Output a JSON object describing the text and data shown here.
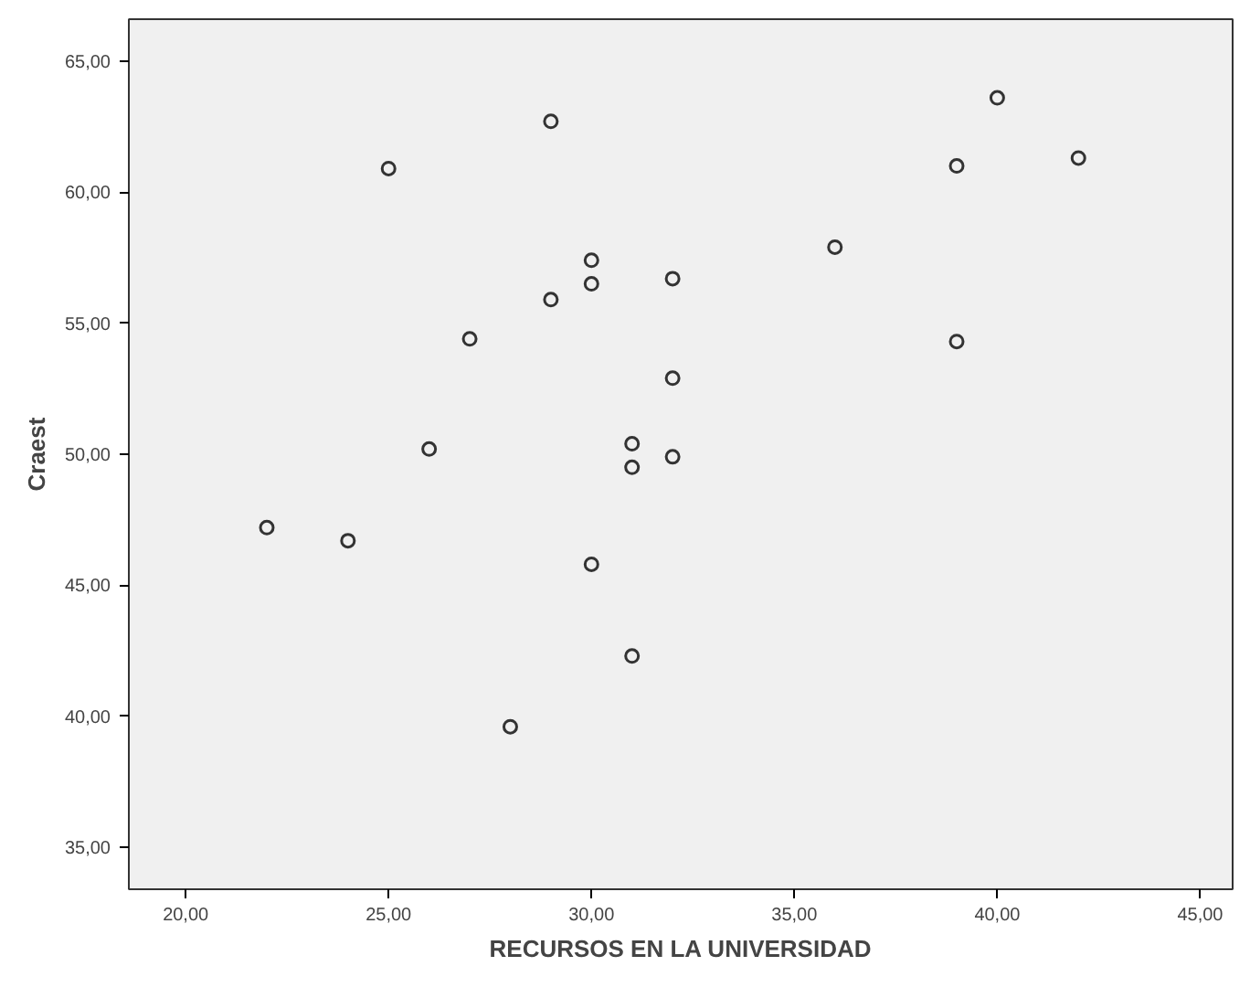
{
  "chart_data": {
    "type": "scatter",
    "xlabel": "RECURSOS EN LA UNIVERSIDAD",
    "ylabel": "Craest",
    "x": [
      22,
      24,
      25,
      26,
      27,
      28,
      29,
      29,
      30,
      30,
      30,
      31,
      31,
      31,
      32,
      32,
      32,
      36,
      39,
      39,
      40,
      42
    ],
    "series": [
      {
        "color": "#333333",
        "values": [
          47.2,
          46.7,
          60.9,
          50.2,
          54.4,
          39.6,
          62.7,
          55.9,
          57.4,
          56.5,
          45.8,
          50.4,
          49.5,
          42.3,
          56.7,
          52.9,
          49.9,
          57.9,
          61.0,
          54.3,
          63.6,
          61.3
        ]
      }
    ],
    "marker": "circle",
    "grid": false,
    "xlim": [
      18.6,
      45.8
    ],
    "ylim": [
      33.4,
      66.6
    ],
    "xticks": [
      {
        "value": 20,
        "label": "20,00"
      },
      {
        "value": 25,
        "label": "25,00"
      },
      {
        "value": 30,
        "label": "30,00"
      },
      {
        "value": 35,
        "label": "35,00"
      },
      {
        "value": 40,
        "label": "40,00"
      },
      {
        "value": 45,
        "label": "45,00"
      }
    ],
    "yticks": [
      {
        "value": 35,
        "label": "35,00"
      },
      {
        "value": 40,
        "label": "40,00"
      },
      {
        "value": 45,
        "label": "45,00"
      },
      {
        "value": 50,
        "label": "50,00"
      },
      {
        "value": 55,
        "label": "55,00"
      },
      {
        "value": 60,
        "label": "60,00"
      },
      {
        "value": 65,
        "label": "65,00"
      }
    ]
  }
}
